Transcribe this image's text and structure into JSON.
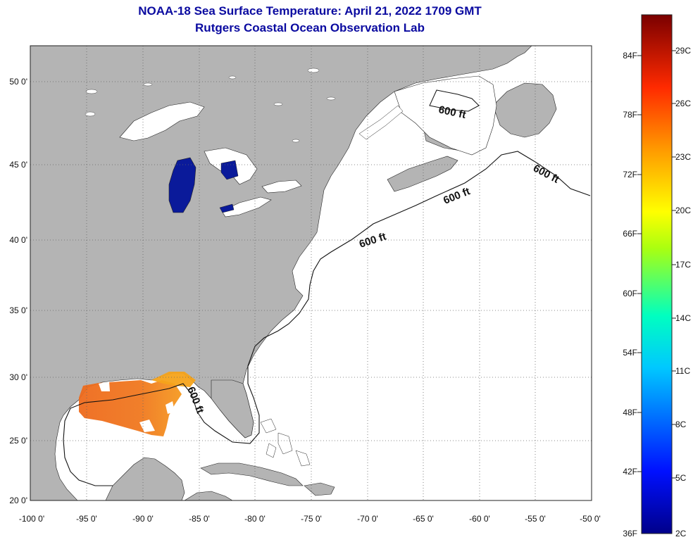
{
  "header": {
    "title": "NOAA-18 Sea Surface Temperature:  April 21, 2022 1709 GMT",
    "subtitle": "Rutgers Coastal Ocean Observation Lab"
  },
  "map": {
    "lat_ticks": [
      "50 0'",
      "45 0'",
      "40 0'",
      "35 0'",
      "30 0'",
      "25 0'",
      "20 0'"
    ],
    "lon_ticks": [
      "-100 0'",
      "-95 0'",
      "-90 0'",
      "-85 0'",
      "-80 0'",
      "-75 0'",
      "-70 0'",
      "-65 0'",
      "-60 0'",
      "-55 0'",
      "-50 0'"
    ],
    "contour_label": "600 ft",
    "colors": {
      "land": "#b4b4b4",
      "water": "#ffffff",
      "lake_cold": "#0a1a9a",
      "gulf_warm": "#ee7722"
    }
  },
  "legend": {
    "f_labels": [
      "84F",
      "78F",
      "72F",
      "66F",
      "60F",
      "54F",
      "48F",
      "42F",
      "36F"
    ],
    "c_labels": [
      "29C",
      "26C",
      "23C",
      "20C",
      "17C",
      "14C",
      "11C",
      "8C",
      "5C",
      "2C"
    ]
  }
}
